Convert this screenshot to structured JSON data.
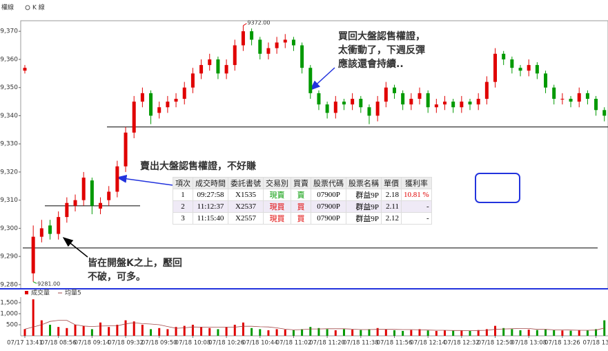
{
  "header": {
    "left": "權線",
    "right": "K 線"
  },
  "chart_data": [
    {
      "type": "candlestick",
      "open": [
        9356,
        9284,
        9297,
        9301,
        9298,
        9304,
        9308,
        9310,
        9317,
        9307,
        9310,
        9313,
        9322,
        9334,
        9345,
        9348,
        9341,
        9343,
        9345,
        9346,
        9350,
        9355,
        9358,
        9360,
        9355,
        9358,
        9365,
        9370,
        9367,
        9362,
        9364,
        9366,
        9367,
        9365,
        9357,
        9348,
        9344,
        9341,
        9345,
        9344,
        9346,
        9343,
        9340,
        9345,
        9350,
        9348,
        9344,
        9346,
        9348,
        9343,
        9344,
        9345,
        9343,
        9345,
        9344,
        9346,
        9352,
        9362,
        9360,
        9357,
        9356,
        9358,
        9355,
        9350,
        9346,
        9346,
        9345,
        9348,
        9346,
        9342
      ],
      "high": [
        9358,
        9301,
        9303,
        9303,
        9306,
        9311,
        9312,
        9320,
        9318,
        9311,
        9315,
        9324,
        9336,
        9347,
        9350,
        9349,
        9345,
        9347,
        9348,
        9352,
        9357,
        9360,
        9362,
        9361,
        9360,
        9367,
        9372,
        9371,
        9368,
        9366,
        9368,
        9369,
        9368,
        9366,
        9358,
        9349,
        9345,
        9347,
        9346,
        9348,
        9347,
        9344,
        9347,
        9352,
        9351,
        9349,
        9348,
        9350,
        9349,
        9346,
        9347,
        9346,
        9347,
        9346,
        9348,
        9354,
        9364,
        9363,
        9361,
        9358,
        9360,
        9359,
        9356,
        9351,
        9348,
        9347,
        9350,
        9349,
        9347,
        9343
      ],
      "low": [
        9355,
        9281,
        9295,
        9296,
        9296,
        9302,
        9306,
        9308,
        9305,
        9305,
        9308,
        9311,
        9320,
        9332,
        9343,
        9337,
        9339,
        9341,
        9343,
        9344,
        9348,
        9353,
        9356,
        9353,
        9353,
        9356,
        9363,
        9365,
        9360,
        9360,
        9362,
        9364,
        9363,
        9355,
        9346,
        9342,
        9339,
        9339,
        9342,
        9342,
        9341,
        9337,
        9338,
        9343,
        9346,
        9342,
        9342,
        9344,
        9341,
        9341,
        9342,
        9341,
        9341,
        9342,
        9342,
        9344,
        9350,
        9358,
        9355,
        9354,
        9354,
        9353,
        9348,
        9344,
        9344,
        9343,
        9343,
        9344,
        9340,
        9338
      ],
      "close": [
        9357,
        9297,
        9300,
        9298,
        9304,
        9309,
        9310,
        9318,
        9308,
        9309,
        9313,
        9322,
        9334,
        9345,
        9348,
        9340,
        9343,
        9345,
        9346,
        9350,
        9355,
        9358,
        9360,
        9355,
        9358,
        9365,
        9370,
        9367,
        9362,
        9364,
        9366,
        9367,
        9365,
        9357,
        9348,
        9344,
        9341,
        9345,
        9344,
        9346,
        9343,
        9340,
        9345,
        9350,
        9348,
        9344,
        9346,
        9348,
        9343,
        9344,
        9345,
        9343,
        9345,
        9344,
        9346,
        9352,
        9362,
        9360,
        9357,
        9356,
        9358,
        9355,
        9350,
        9346,
        9346,
        9345,
        9348,
        9346,
        9342,
        9340
      ],
      "up_color": "#e00000",
      "down_color": "#009900",
      "ylim": [
        9278.5,
        9373
      ],
      "yticks": [
        {
          "value": 9280,
          "label": "9,280"
        },
        {
          "value": 9290,
          "label": "9,290"
        },
        {
          "value": 9300,
          "label": "9,300"
        },
        {
          "value": 9310,
          "label": "9,310"
        },
        {
          "value": 9320,
          "label": "9,320"
        },
        {
          "value": 9330,
          "label": "9,330"
        },
        {
          "value": 9340,
          "label": "9,340"
        },
        {
          "value": 9350,
          "label": "9,350"
        },
        {
          "value": 9360,
          "label": "9,360"
        },
        {
          "value": 9370,
          "label": "9,370"
        }
      ],
      "reference_lines": [
        9336,
        9308,
        9293
      ],
      "extremes": [
        {
          "value": 9372,
          "label": "9372.00"
        },
        {
          "value": 9281,
          "label": "9281.00"
        }
      ],
      "notes": [
        [
          "買回大盤認售權證，",
          "太衝動了，下週反彈",
          "應該還會持續.."
        ],
        [
          "賣出大盤認售權證，不好賺"
        ],
        [
          "皆在開盤K之上，壓回",
          "不破，可多。"
        ]
      ]
    },
    {
      "type": "bar",
      "categories": [
        "07/17 13:41",
        null,
        null,
        null,
        "07/18 08:56",
        null,
        null,
        null,
        "07/18 09:14",
        null,
        null,
        null,
        "07/18 09:32",
        null,
        null,
        null,
        "07/18 09:50",
        null,
        null,
        null,
        "07/18 10:08",
        null,
        null,
        null,
        "07/18 10:26",
        null,
        null,
        null,
        "07/18 10:44",
        null,
        null,
        null,
        "07/18 11:02",
        null,
        null,
        null,
        "07/18 11:20",
        null,
        null,
        null,
        "07/18 11:38",
        null,
        null,
        null,
        "07/18 11:56",
        null,
        null,
        null,
        "07/18 12:14",
        null,
        null,
        null,
        "07/18 12:32",
        null,
        null,
        null,
        "07/18 12:50",
        null,
        null,
        null,
        "07/18 13:08",
        null,
        null,
        null,
        "07/18 13:26",
        null,
        null,
        null,
        "07/18 13",
        null
      ],
      "series": [
        {
          "name": "成交量",
          "color": "#e00000",
          "values": [
            300,
            1650,
            700,
            500,
            400,
            350,
            500,
            450,
            300,
            600,
            400,
            500,
            700,
            650,
            500,
            300,
            350,
            300,
            400,
            450,
            500,
            400,
            350,
            300,
            400,
            500,
            600,
            350,
            300,
            250,
            300,
            280,
            250,
            300,
            400,
            350,
            300,
            250,
            300,
            280,
            260,
            300,
            350,
            300,
            250,
            220,
            260,
            300,
            240,
            220,
            250,
            230,
            240,
            220,
            260,
            300,
            450,
            350,
            300,
            250,
            280,
            260,
            300,
            250,
            240,
            230,
            260,
            240,
            300,
            700
          ]
        },
        {
          "name": "均量5",
          "color": "#a04848",
          "type": "line",
          "values": [
            300,
            400,
            500,
            650,
            700,
            700,
            500,
            440,
            420,
            440,
            450,
            450,
            540,
            590,
            550,
            530,
            500,
            420,
            340,
            360,
            400,
            390,
            390,
            390,
            390,
            390,
            430,
            430,
            410,
            400,
            360,
            300,
            270,
            280,
            310,
            310,
            320,
            320,
            320,
            300,
            280,
            280,
            290,
            290,
            290,
            280,
            280,
            270,
            260,
            250,
            250,
            240,
            240,
            230,
            240,
            250,
            290,
            310,
            320,
            330,
            330,
            290,
            290,
            270,
            270,
            260,
            250,
            250,
            260,
            350
          ]
        }
      ],
      "ylim": [
        0,
        1750
      ],
      "yticks": [
        500,
        {
          "value": 1000,
          "label": "1,000"
        },
        {
          "value": 1500,
          "label": "1,500"
        }
      ]
    }
  ],
  "table": {
    "columns": [
      "項次",
      "成交時間",
      "委託書號",
      "交易別",
      "買賣",
      "股票代碼",
      "股票名稱",
      "單價",
      "獲利率"
    ],
    "rows": [
      [
        "1",
        "09:27:58",
        "X1535",
        "現賣",
        "賣",
        "07900P",
        "群益9P",
        "2.18",
        "10.81 %"
      ],
      [
        "2",
        "11:12:37",
        "X2537",
        "現買",
        "買",
        "07900P",
        "群益9P",
        "2.11",
        "-"
      ],
      [
        "3",
        "11:15:40",
        "X2557",
        "現買",
        "買",
        "07900P",
        "群益9P",
        "2.12",
        "-"
      ]
    ]
  }
}
